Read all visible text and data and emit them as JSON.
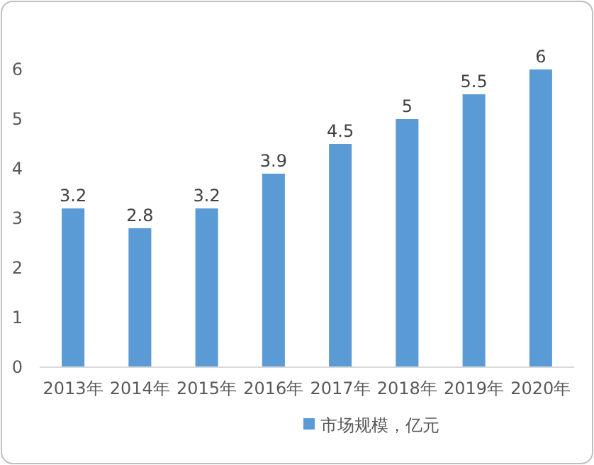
{
  "chart_data": {
    "type": "bar",
    "categories": [
      "2013年",
      "2014年",
      "2015年",
      "2016年",
      "2017年",
      "2018年",
      "2019年",
      "2020年"
    ],
    "series": [
      {
        "name": "市场规模，亿元",
        "color": "#5b9bd5",
        "values": [
          3.2,
          2.8,
          3.2,
          3.9,
          4.5,
          5,
          5.5,
          6
        ]
      }
    ],
    "ylim": [
      0,
      6
    ],
    "yticks": [
      0,
      1,
      2,
      3,
      4,
      5,
      6
    ],
    "data_labels": true,
    "legend": "bottom",
    "grid": false
  }
}
